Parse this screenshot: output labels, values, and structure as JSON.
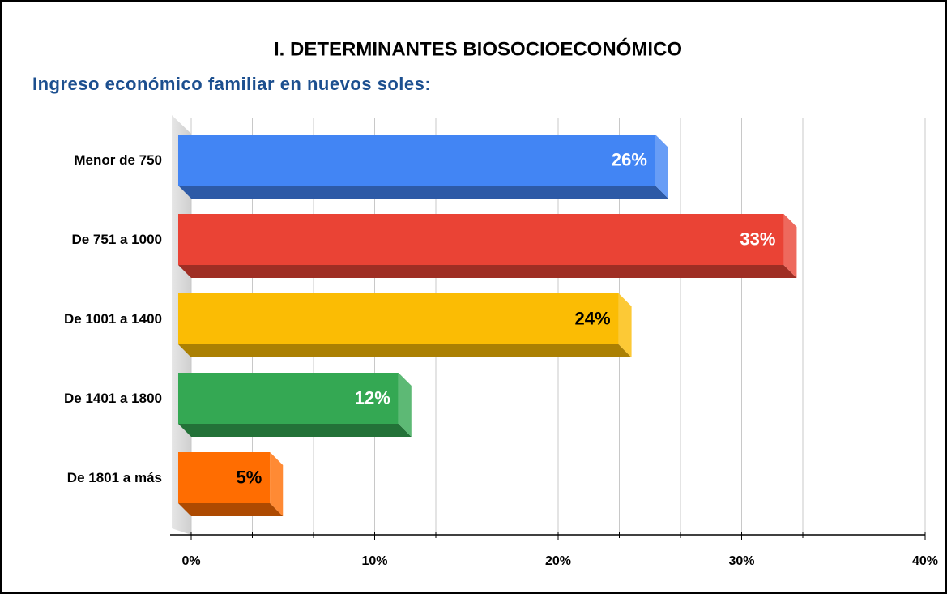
{
  "chart_data": {
    "type": "bar3d_horizontal",
    "title": "I. DETERMINANTES BIOSOCIOECONÓMICO",
    "subtitle": "Ingreso económico familiar en nuevos soles:",
    "categories": [
      "Menor de 750",
      "De 751 a 1000",
      "De 1001 a 1400",
      "De 1401 a 1800",
      "De 1801 a más"
    ],
    "values": [
      26,
      33,
      24,
      12,
      5
    ],
    "value_labels": [
      "26%",
      "33%",
      "24%",
      "12%",
      "5%"
    ],
    "colors": [
      "#4285f4",
      "#ea4335",
      "#fbbc04",
      "#34a853",
      "#ff6d01"
    ],
    "value_label_colors": [
      "#ffffff",
      "#ffffff",
      "#000000",
      "#ffffff",
      "#000000"
    ],
    "xlim": [
      0,
      40
    ],
    "xticks": [
      {
        "value": 0,
        "label": "0%"
      },
      {
        "value": 10,
        "label": "10%"
      },
      {
        "value": 20,
        "label": "20%"
      },
      {
        "value": 30,
        "label": "30%"
      },
      {
        "value": 40,
        "label": "40%"
      }
    ],
    "grid": true,
    "minor_grid_divisions": 3
  }
}
